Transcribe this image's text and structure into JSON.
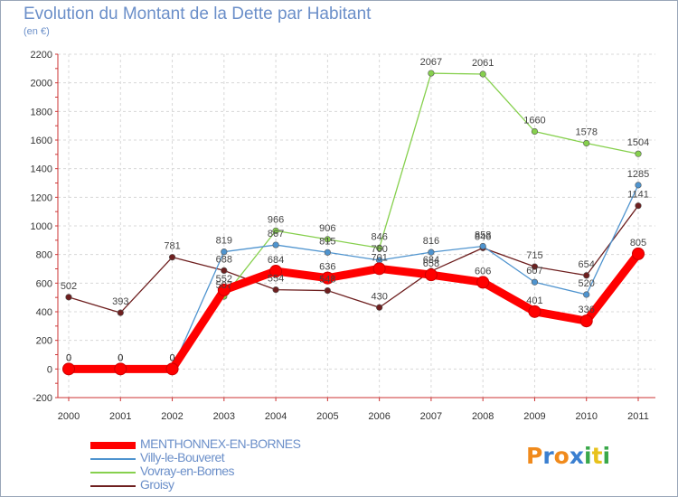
{
  "title": "Evolution du Montant de la Dette par Habitant",
  "subtitle": "(en €)",
  "logo": {
    "text": "Proxiti",
    "letters": [
      {
        "ch": "P",
        "color": "#f08a1c"
      },
      {
        "ch": "r",
        "color": "#3a7fd0"
      },
      {
        "ch": "o",
        "color": "#f08a1c"
      },
      {
        "ch": "x",
        "color": "#3a7fd0"
      },
      {
        "ch": "i",
        "color": "#3aa84a"
      },
      {
        "ch": "t",
        "color": "#e8c21c"
      },
      {
        "ch": "i",
        "color": "#3aa84a"
      }
    ]
  },
  "chart_data": {
    "type": "line",
    "x": [
      "2000",
      "2001",
      "2002",
      "2003",
      "2004",
      "2005",
      "2006",
      "2007",
      "2008",
      "2009",
      "2010",
      "2011"
    ],
    "y_ticks": [
      "-200",
      "0",
      "200",
      "400",
      "600",
      "800",
      "1000",
      "1200",
      "1400",
      "1600",
      "1800",
      "2000",
      "2200"
    ],
    "ylim": [
      -200,
      2200
    ],
    "grid": true,
    "legend_position": "bottom-left",
    "series": [
      {
        "name": "Groisy",
        "color": "#6e1f1f",
        "values": [
          502,
          393,
          781,
          688,
          554,
          548,
          430,
          684,
          846,
          715,
          654,
          1141
        ],
        "labels": [
          "502",
          "393",
          "781",
          "688",
          "554",
          "548",
          "430",
          "684",
          "846",
          "715",
          "654",
          "1141"
        ]
      },
      {
        "name": "Vovray-en-Bornes",
        "color": "#86d04d",
        "values": [
          0,
          0,
          0,
          507,
          966,
          906,
          846,
          2067,
          2061,
          1660,
          1578,
          1504
        ],
        "labels": [
          "0",
          "0",
          "0",
          "507",
          "966",
          "906",
          "846",
          "2067",
          "2061",
          "1660",
          "1578",
          "1504"
        ]
      },
      {
        "name": "Villy-le-Bouveret",
        "color": "#4f94cf",
        "values": [
          0,
          0,
          0,
          819,
          867,
          815,
          760,
          816,
          858,
          607,
          520,
          1285
        ],
        "labels": [
          "0",
          "0",
          "0",
          "819",
          "867",
          "815",
          "760",
          "816",
          "858",
          "607",
          "520",
          "1285"
        ]
      },
      {
        "name": "MENTHONNEX-EN-BORNES",
        "color": "#ff0000",
        "values": [
          0,
          0,
          0,
          552,
          684,
          636,
          701,
          658,
          606,
          401,
          336,
          805
        ],
        "labels": [
          "0",
          "0",
          "0",
          "552",
          "684",
          "636",
          "701",
          "658",
          "606",
          "401",
          "336",
          "805"
        ]
      }
    ]
  }
}
